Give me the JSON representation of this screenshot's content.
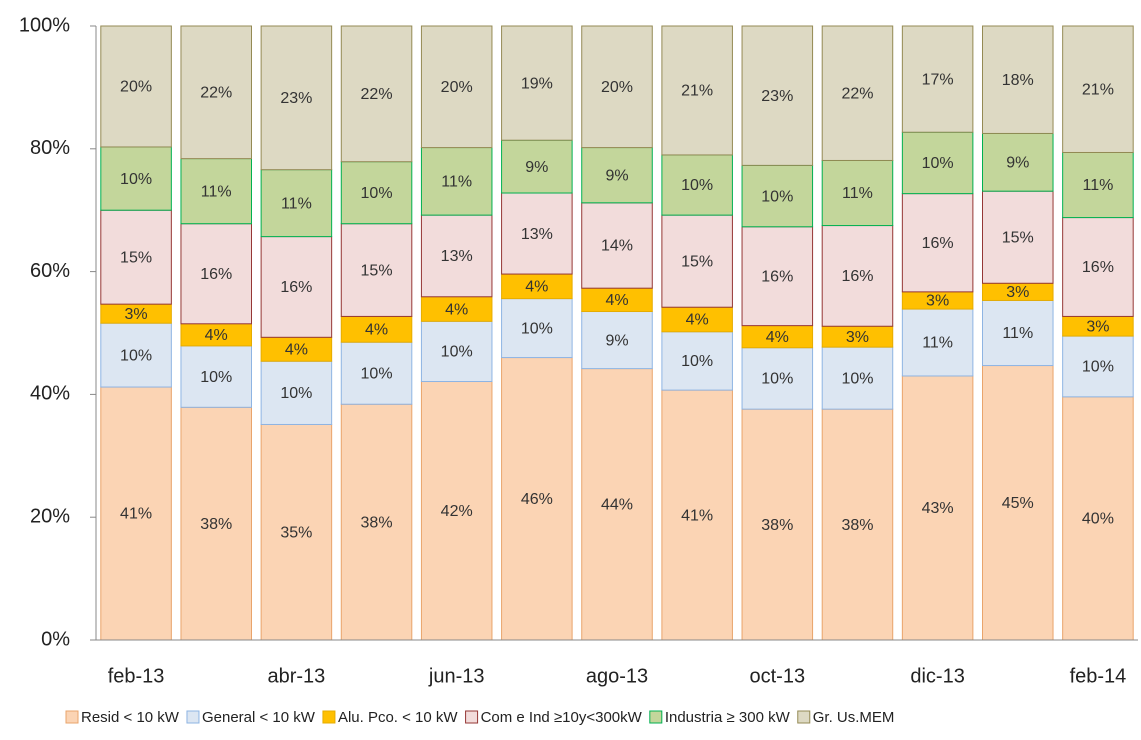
{
  "chart_data": {
    "type": "stacked_bar",
    "categories": [
      "feb-13",
      null,
      "abr-13",
      null,
      "jun-13",
      null,
      "ago-13",
      null,
      "oct-13",
      null,
      "dic-13",
      null,
      "feb-14"
    ],
    "ylim": [
      0,
      100
    ],
    "yticks": [
      {
        "value": 0,
        "label": "0%"
      },
      {
        "value": 20,
        "label": "20%"
      },
      {
        "value": 40,
        "label": "40%"
      },
      {
        "value": 60,
        "label": "60%"
      },
      {
        "value": 80,
        "label": "80%"
      },
      {
        "value": 100,
        "label": "100%"
      }
    ],
    "legend": "bottom",
    "series": [
      {
        "name": "Resid < 10 kW",
        "color": "#fbd4b4",
        "border": "#e9a46b",
        "values": [
          41.2,
          37.9,
          35.1,
          38.4,
          42.1,
          46.0,
          44.2,
          40.7,
          37.6,
          37.6,
          43.0,
          44.7,
          39.6
        ],
        "value_labels": [
          "41%",
          "38%",
          "35%",
          "38%",
          "42%",
          "46%",
          "44%",
          "41%",
          "38%",
          "38%",
          "43%",
          "45%",
          "40%"
        ]
      },
      {
        "name": "General < 10 kW",
        "color": "#dce6f2",
        "border": "#8eb4e3",
        "values": [
          10.4,
          10.0,
          10.3,
          10.1,
          9.8,
          9.6,
          9.3,
          9.5,
          10.0,
          10.1,
          10.9,
          10.6,
          9.9
        ],
        "value_labels": [
          "10%",
          "10%",
          "10%",
          "10%",
          "10%",
          "10%",
          "9%",
          "10%",
          "10%",
          "10%",
          "11%",
          "11%",
          "10%"
        ]
      },
      {
        "name": "Alu. Pco. < 10 kW",
        "color": "#ffc000",
        "border": "#e6ac00",
        "values": [
          3.1,
          3.6,
          3.9,
          4.2,
          4.0,
          4.0,
          3.8,
          4.0,
          3.6,
          3.4,
          2.8,
          2.8,
          3.2
        ],
        "value_labels": [
          "3%",
          "4%",
          "4%",
          "4%",
          "4%",
          "4%",
          "4%",
          "4%",
          "4%",
          "3%",
          "3%",
          "3%",
          "3%"
        ]
      },
      {
        "name": "Com e Ind ≥10y<300kW",
        "color": "#f2dcdb",
        "border": "#953735",
        "values": [
          15.3,
          16.3,
          16.4,
          15.1,
          13.3,
          13.2,
          13.9,
          15.0,
          16.1,
          16.4,
          16.0,
          15.0,
          16.1
        ],
        "value_labels": [
          "15%",
          "16%",
          "16%",
          "15%",
          "13%",
          "13%",
          "14%",
          "15%",
          "16%",
          "16%",
          "16%",
          "15%",
          "16%"
        ]
      },
      {
        "name": "Industria ≥ 300 kW",
        "color": "#c3d69b",
        "border": "#00b050",
        "values": [
          10.3,
          10.6,
          10.9,
          10.1,
          11.0,
          8.6,
          9.0,
          9.8,
          10.0,
          10.6,
          10.0,
          9.4,
          10.6
        ],
        "value_labels": [
          "10%",
          "11%",
          "11%",
          "10%",
          "11%",
          "9%",
          "9%",
          "10%",
          "10%",
          "11%",
          "10%",
          "9%",
          "11%"
        ]
      },
      {
        "name": "Gr. Us.MEM",
        "color": "#ddd9c3",
        "border": "#948a54",
        "values": [
          19.7,
          21.6,
          23.4,
          22.1,
          19.8,
          18.6,
          19.8,
          21.0,
          22.7,
          21.9,
          17.3,
          17.5,
          20.6
        ],
        "value_labels": [
          "20%",
          "22%",
          "23%",
          "22%",
          "20%",
          "19%",
          "20%",
          "21%",
          "23%",
          "22%",
          "17%",
          "18%",
          "21%"
        ]
      }
    ]
  }
}
